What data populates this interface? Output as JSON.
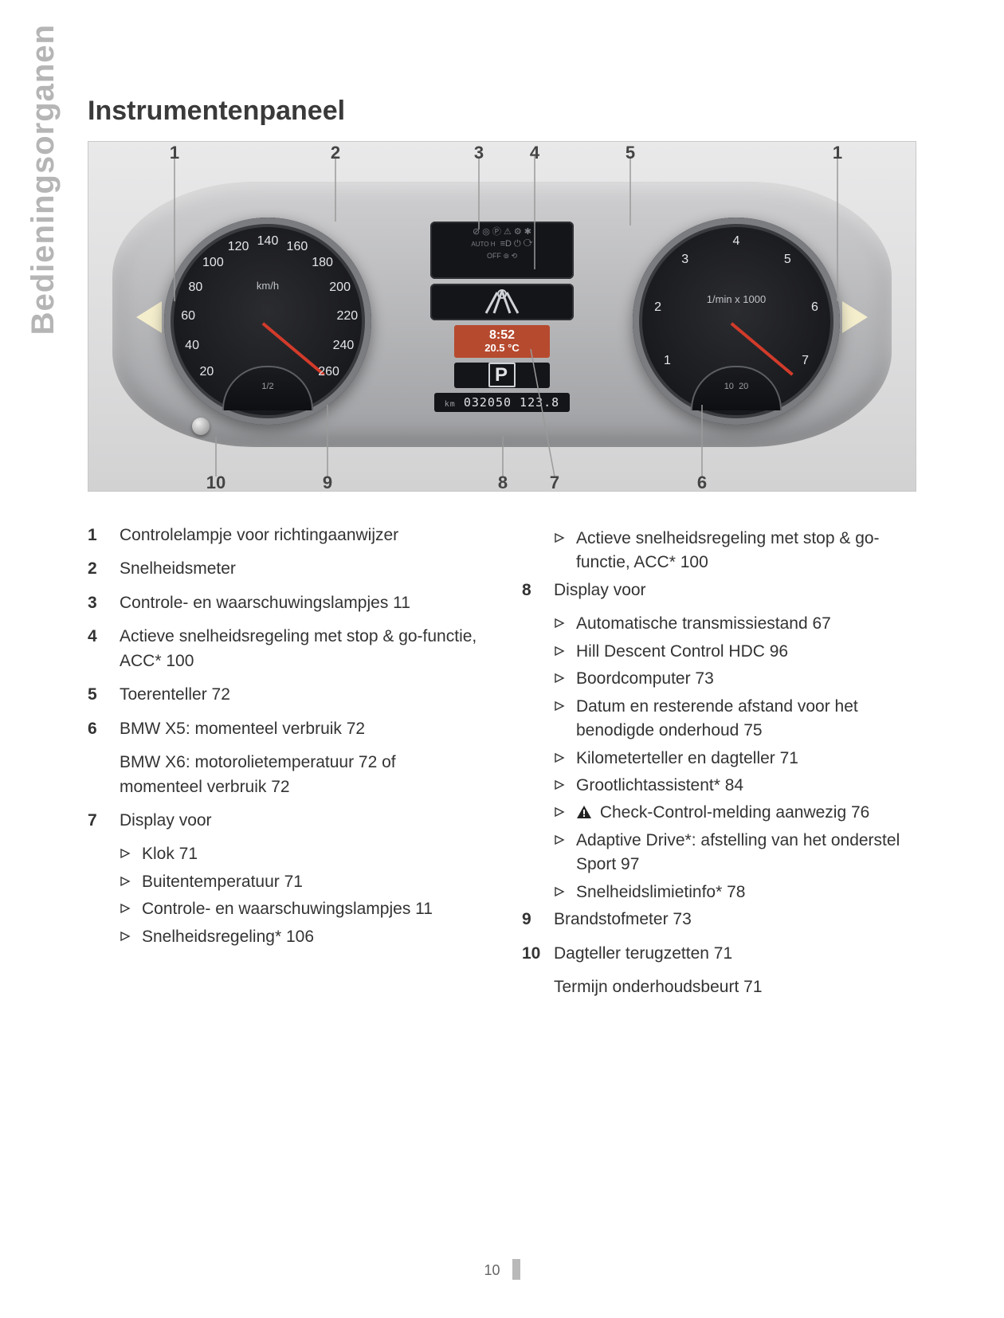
{
  "side_tab": "Bedieningsorganen",
  "title": "Instrumentenpaneel",
  "page_number": "10",
  "figure": {
    "callouts_top": {
      "c1": "1",
      "c2": "2",
      "c3": "3",
      "c4": "4",
      "c5": "5",
      "c1r": "1"
    },
    "callouts_bottom": {
      "c10": "10",
      "c9": "9",
      "c8": "8",
      "c7": "7",
      "c6": "6"
    },
    "speedo": {
      "unit": "km/h",
      "ticks": [
        "20",
        "40",
        "60",
        "80",
        "100",
        "120",
        "140",
        "160",
        "180",
        "200",
        "220",
        "240",
        "260"
      ],
      "needle_deg": 310,
      "fuel_label": "1/2"
    },
    "tacho": {
      "unit": "1/min x 1000",
      "ticks": [
        "1",
        "2",
        "3",
        "4",
        "5",
        "6",
        "7"
      ],
      "needle_deg": 310,
      "econ_labels": [
        "10",
        "20"
      ]
    },
    "lamp_row1": "⊘  ◎  Ⓟ  ⚠  ⚙  ✱",
    "lamp_row2_left": "AUTO H",
    "lamp_row2": "≡D  ⏻  ⟳",
    "lamp_row3": "OFF    ⊚   ⟲",
    "lcd_time": "8:52",
    "lcd_temp": "20.5 °C",
    "gear": "P",
    "odo_label": "km",
    "odo": "032050 123.8"
  },
  "left_col": [
    {
      "n": "1",
      "t": "Controlelampje voor richtingaanwijzer"
    },
    {
      "n": "2",
      "t": "Snelheidsmeter"
    },
    {
      "n": "3",
      "t": "Controle- en waarschuwingslampjes  11"
    },
    {
      "n": "4",
      "t": "Actieve snelheidsregeling met stop & go-functie, ACC*  100"
    },
    {
      "n": "5",
      "t": "Toerenteller  72"
    },
    {
      "n": "6",
      "t": "BMW X5: momenteel verbruik  72"
    },
    {
      "n": "",
      "t": "BMW X6: motorolietemperatuur  72 of momenteel verbruik  72",
      "cont": true
    },
    {
      "n": "7",
      "t": "Display voor",
      "subs": [
        "Klok  71",
        "Buitentemperatuur  71",
        "Controle- en waarschuwingslamp­jes  11",
        "Snelheidsregeling*  106"
      ]
    }
  ],
  "right_col_pre_subs": [
    "Actieve snelheidsregeling met stop & go-functie, ACC*  100"
  ],
  "right_col": [
    {
      "n": "8",
      "t": "Display voor",
      "subs": [
        "Automatische transmissiestand  67",
        "Hill Descent Control HDC  96",
        "Boordcomputer  73",
        "Datum en resterende afstand voor het benodigde onderhoud  75",
        "Kilometerteller en dagteller  71",
        "Grootlichtassistent*  84",
        {
          "warn": true,
          "t": "Check-Control-melding aanwe­zig  76"
        },
        "Adaptive Drive*: afstelling van het on­derstel Sport  97",
        "Snelheidslimietinfo*  78"
      ]
    },
    {
      "n": "9",
      "t": "Brandstofmeter  73"
    },
    {
      "n": "10",
      "t": "Dagteller terugzetten  71"
    },
    {
      "n": "",
      "t": "Termijn onderhoudsbeurt  71",
      "cont": true
    }
  ]
}
